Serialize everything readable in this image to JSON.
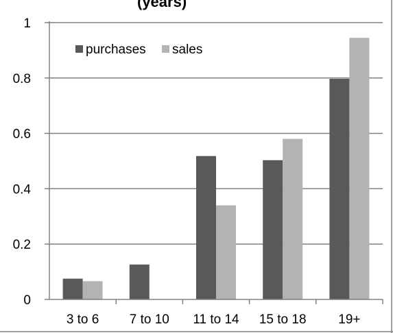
{
  "chart_data": {
    "type": "bar",
    "title": "(years)",
    "categories": [
      "3  to 6",
      "7 to 10",
      "11 to 14",
      "15 to 18",
      "19+"
    ],
    "series": [
      {
        "name": "purchases",
        "values": [
          0.075,
          0.126,
          0.518,
          0.503,
          0.797
        ],
        "color": "#595959"
      },
      {
        "name": "sales",
        "values": [
          0.066,
          null,
          0.34,
          0.58,
          0.945
        ],
        "color": "#b3b3b3"
      }
    ],
    "ylim": [
      0,
      1
    ],
    "yticks": [
      "0",
      "0.2",
      "0.4",
      "0.6",
      "0.8",
      "1"
    ],
    "ytick_values": [
      0,
      0.2,
      0.4,
      0.6,
      0.8,
      1
    ],
    "grid": true,
    "legend_position": "top-left",
    "xlabel": "",
    "ylabel": ""
  }
}
